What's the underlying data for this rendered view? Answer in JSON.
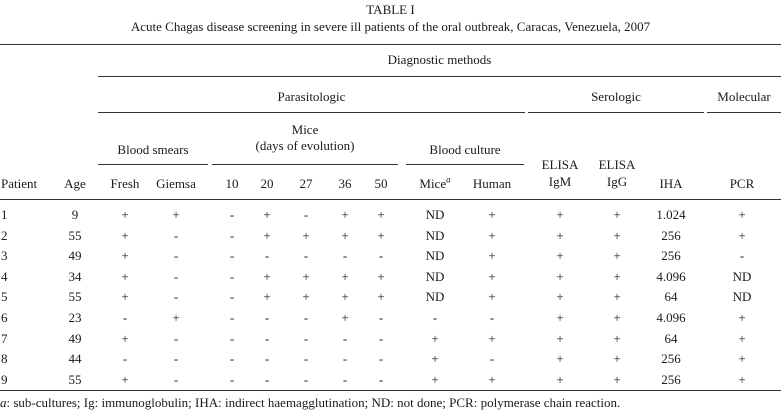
{
  "table": {
    "label": "TABLE I",
    "title": "Acute Chagas disease screening in severe ill patients of the oral outbreak, Caracas, Venezuela, 2007",
    "header": {
      "diagnostic_methods": "Diagnostic methods",
      "parasitologic": "Parasitologic",
      "serologic": "Serologic",
      "molecular": "Molecular",
      "blood_smears": "Blood smears",
      "mice_line1": "Mice",
      "mice_line2": "(days of evolution)",
      "blood_culture": "Blood culture",
      "elisa_igm_1": "ELISA",
      "elisa_igm_2": "IgM",
      "elisa_igg_1": "ELISA",
      "elisa_igg_2": "IgG",
      "columns": [
        "Patient",
        "Age",
        "Fresh",
        "Giemsa",
        "10",
        "20",
        "27",
        "36",
        "50",
        "Mice",
        "Human",
        "",
        "",
        "IHA",
        "PCR"
      ],
      "mice_culture_sup": "a"
    },
    "rows": [
      [
        "1",
        "9",
        "+",
        "+",
        "-",
        "+",
        "-",
        "+",
        "+",
        "ND",
        "+",
        "+",
        "+",
        "1.024",
        "+"
      ],
      [
        "2",
        "55",
        "+",
        "-",
        "-",
        "+",
        "+",
        "+",
        "+",
        "ND",
        "+",
        "+",
        "+",
        "256",
        "+"
      ],
      [
        "3",
        "49",
        "+",
        "-",
        "-",
        "-",
        "-",
        "-",
        "-",
        "ND",
        "+",
        "+",
        "+",
        "256",
        "-"
      ],
      [
        "4",
        "34",
        "+",
        "-",
        "-",
        "+",
        "+",
        "+",
        "+",
        "ND",
        "+",
        "+",
        "+",
        "4.096",
        "ND"
      ],
      [
        "5",
        "55",
        "+",
        "-",
        "-",
        "+",
        "+",
        "+",
        "+",
        "ND",
        "+",
        "+",
        "+",
        "64",
        "ND"
      ],
      [
        "6",
        "23",
        "-",
        "+",
        "-",
        "-",
        "-",
        "+",
        "-",
        "-",
        "-",
        "+",
        "+",
        "4.096",
        "+"
      ],
      [
        "7",
        "49",
        "+",
        "-",
        "-",
        "-",
        "-",
        "-",
        "-",
        "+",
        "+",
        "+",
        "+",
        "64",
        "+"
      ],
      [
        "8",
        "44",
        "-",
        "-",
        "-",
        "-",
        "-",
        "-",
        "-",
        "+",
        "-",
        "+",
        "+",
        "256",
        "+"
      ],
      [
        "9",
        "55",
        "+",
        "-",
        "-",
        "-",
        "-",
        "-",
        "-",
        "+",
        "+",
        "+",
        "+",
        "256",
        "+"
      ]
    ],
    "footnote_symbol": "a",
    "footnote_text": ": sub-cultures; Ig: immunoglobulin; IHA: indirect haemagglutination; ND: not done; PCR: polymerase chain reaction."
  }
}
